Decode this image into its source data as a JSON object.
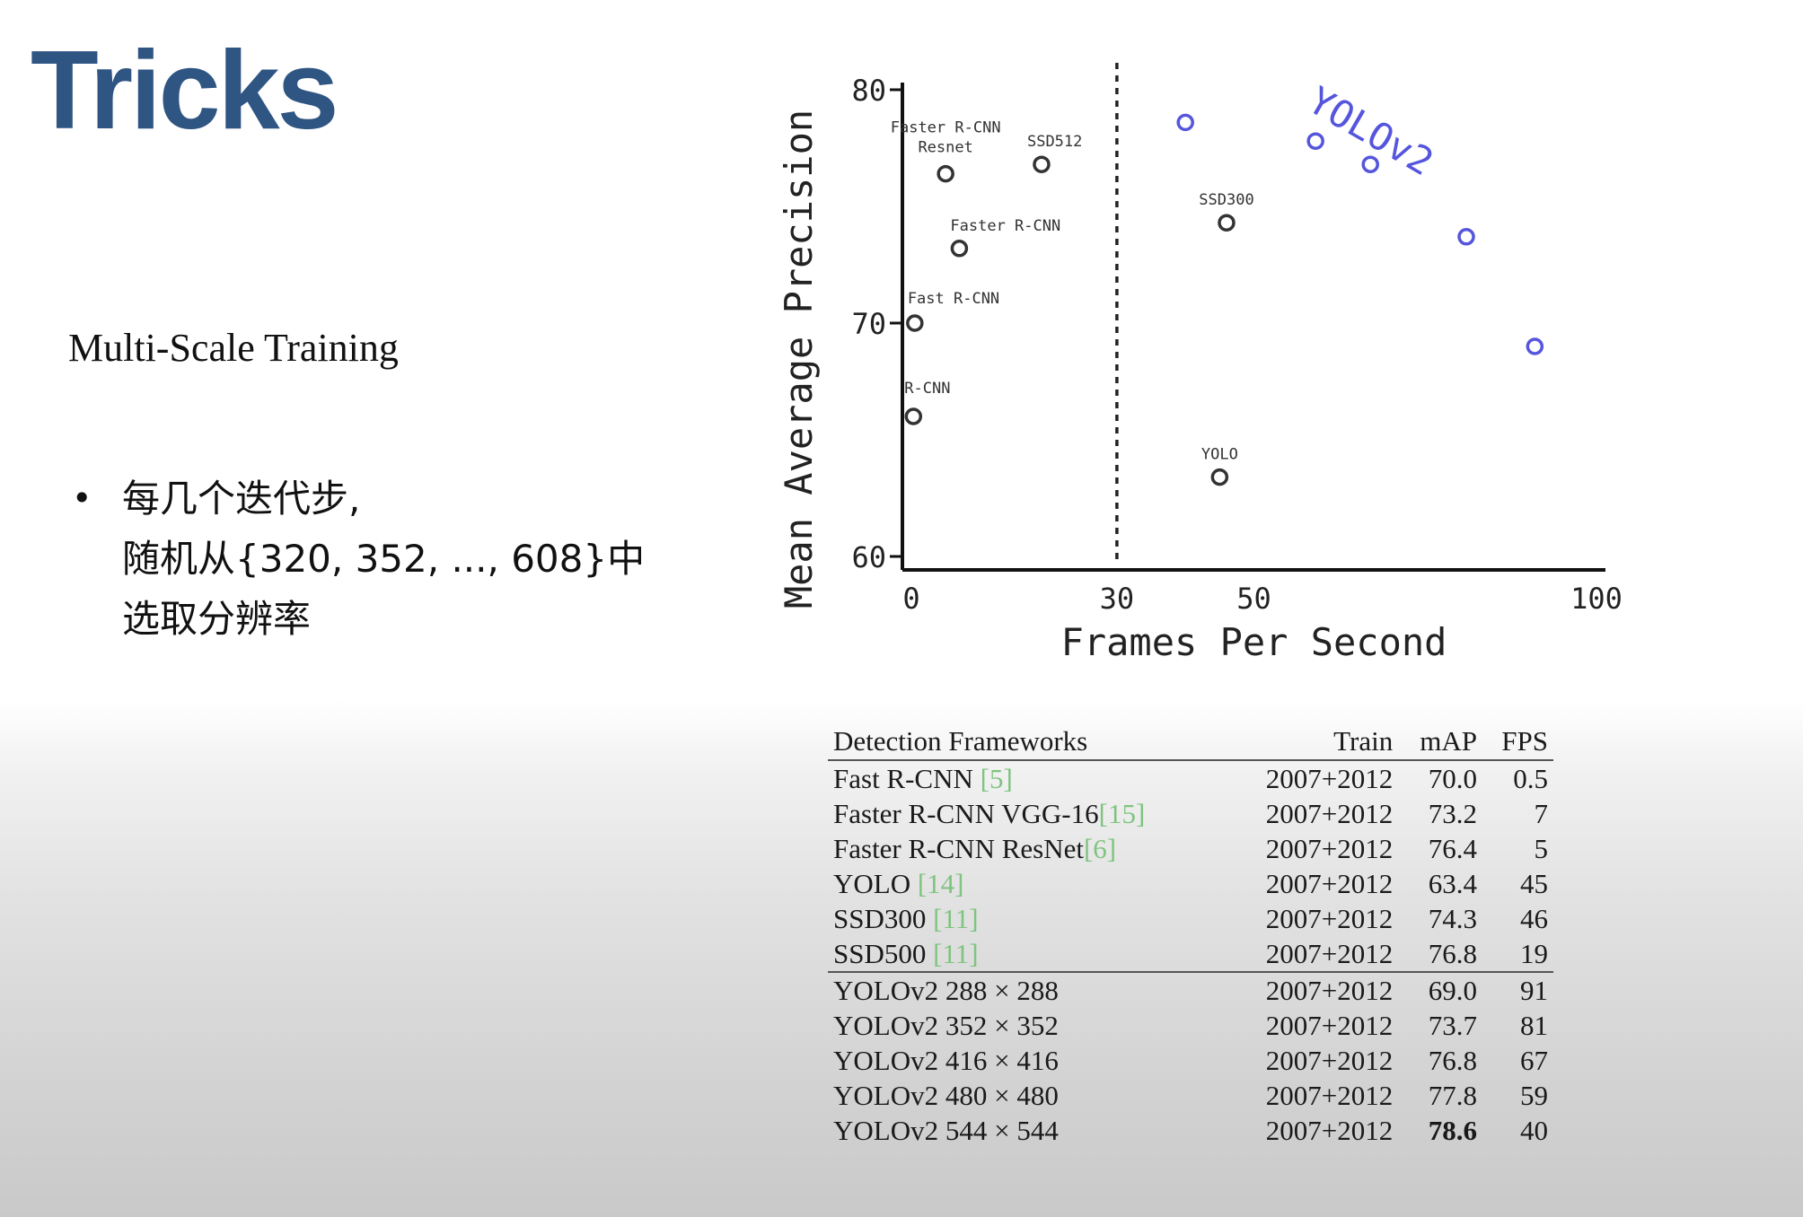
{
  "slide": {
    "title": "Tricks",
    "subtitle": "Multi-Scale Training",
    "bullet_lines": [
      "每几个迭代步,",
      "随机从{320, 352, ..., 608}中",
      "选取分辨率"
    ]
  },
  "colors": {
    "title": "#2f5583",
    "yolov2": "#5555dd",
    "points": "#333333",
    "ref": "#7fc47f"
  },
  "chart_data": {
    "type": "scatter",
    "xlabel": "Frames Per Second",
    "ylabel": "Mean Average Precision",
    "xlim": [
      0,
      100
    ],
    "ylim": [
      60,
      80
    ],
    "xticks": [
      0,
      30,
      50,
      100
    ],
    "yticks": [
      60,
      70,
      80
    ],
    "reference_line": {
      "x": 30,
      "style": "dashed"
    },
    "grid": false,
    "points": [
      {
        "name": "R-CNN",
        "x": 0.3,
        "y": 66.0,
        "labeled": true
      },
      {
        "name": "Fast R-CNN",
        "x": 0.5,
        "y": 70.0,
        "labeled": true
      },
      {
        "name": "Faster R-CNN",
        "x": 7,
        "y": 73.2,
        "labeled": true
      },
      {
        "name": "Faster R-CNN Resnet",
        "x": 5,
        "y": 76.4,
        "labeled": true
      },
      {
        "name": "SSD512",
        "x": 19,
        "y": 76.8,
        "labeled": true
      },
      {
        "name": "SSD300",
        "x": 46,
        "y": 74.3,
        "labeled": true
      },
      {
        "name": "YOLO",
        "x": 45,
        "y": 63.4,
        "labeled": true
      }
    ],
    "series": [
      {
        "name": "YOLOv2",
        "x": [
          40,
          59,
          67,
          81,
          91
        ],
        "y": [
          78.6,
          77.8,
          76.8,
          73.7,
          69.0
        ]
      }
    ]
  },
  "table": {
    "columns": [
      "Detection Frameworks",
      "Train",
      "mAP",
      "FPS"
    ],
    "rows": [
      {
        "name": "Fast R-CNN ",
        "ref": "[5]",
        "train": "2007+2012",
        "map": "70.0",
        "fps": "0.5"
      },
      {
        "name": "Faster R-CNN VGG-16",
        "ref": "[15]",
        "train": "2007+2012",
        "map": "73.2",
        "fps": "7"
      },
      {
        "name": "Faster R-CNN ResNet",
        "ref": "[6]",
        "train": "2007+2012",
        "map": "76.4",
        "fps": "5"
      },
      {
        "name": "YOLO ",
        "ref": "[14]",
        "train": "2007+2012",
        "map": "63.4",
        "fps": "45"
      },
      {
        "name": "SSD300 ",
        "ref": "[11]",
        "train": "2007+2012",
        "map": "74.3",
        "fps": "46"
      },
      {
        "name": "SSD500 ",
        "ref": "[11]",
        "train": "2007+2012",
        "map": "76.8",
        "fps": "19"
      },
      {
        "name": "YOLOv2 288 × 288",
        "ref": "",
        "train": "2007+2012",
        "map": "69.0",
        "fps": "91"
      },
      {
        "name": "YOLOv2 352 × 352",
        "ref": "",
        "train": "2007+2012",
        "map": "73.7",
        "fps": "81"
      },
      {
        "name": "YOLOv2 416 × 416",
        "ref": "",
        "train": "2007+2012",
        "map": "76.8",
        "fps": "67"
      },
      {
        "name": "YOLOv2 480 × 480",
        "ref": "",
        "train": "2007+2012",
        "map": "77.8",
        "fps": "59"
      },
      {
        "name": "YOLOv2 544 × 544",
        "ref": "",
        "train": "2007+2012",
        "map": "78.6",
        "fps": "40",
        "best": true
      }
    ]
  }
}
